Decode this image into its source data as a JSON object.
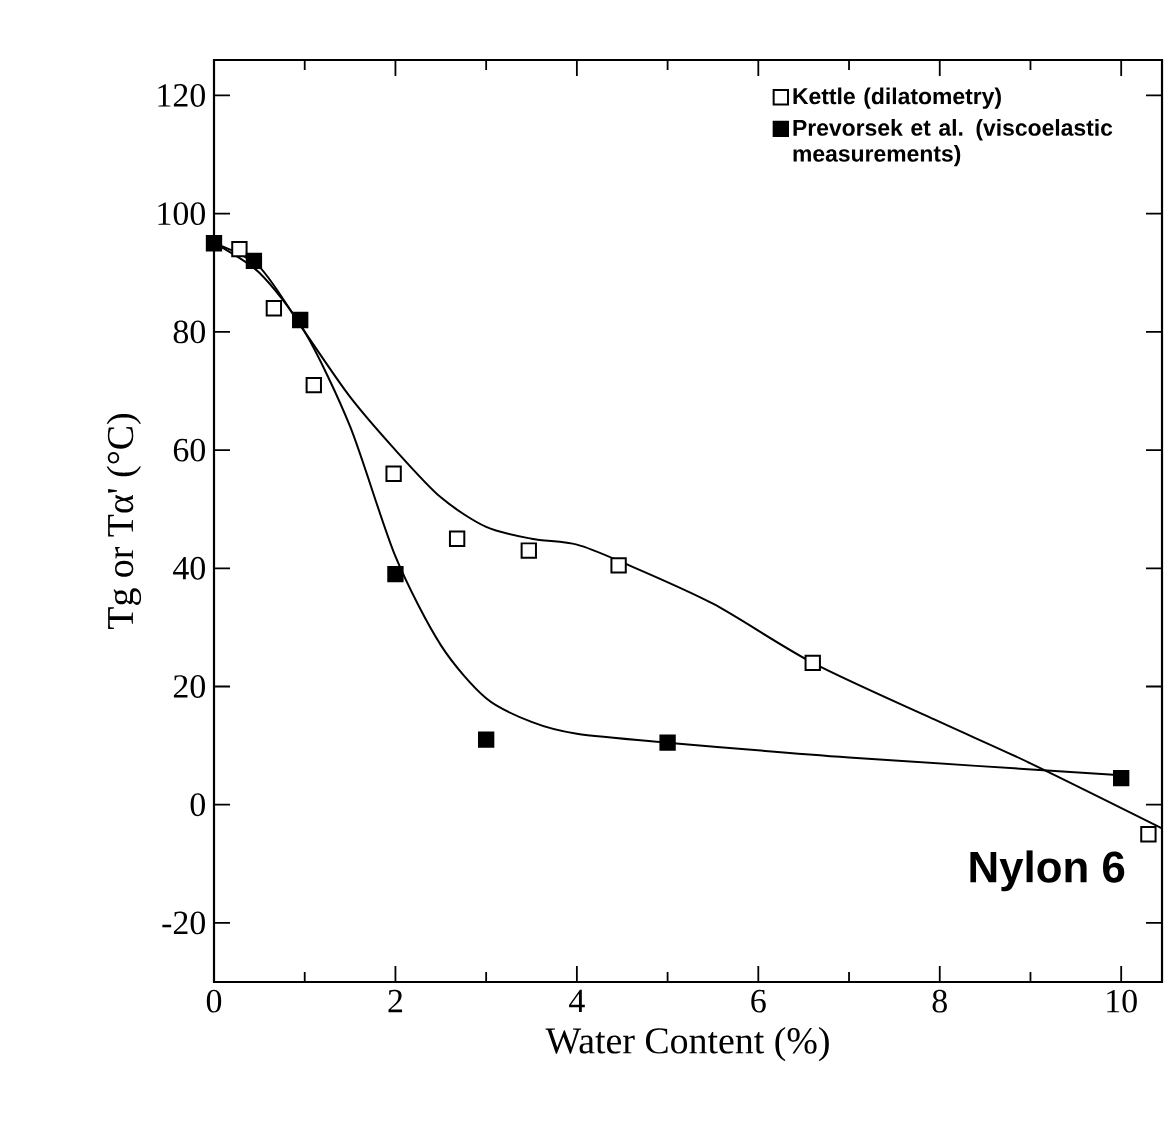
{
  "chart_data": {
    "type": "scatter",
    "xlabel": "Water Content (%)",
    "ylabel": "Tg or Tα' (°C)",
    "xlim": [
      0,
      10.45
    ],
    "ylim": [
      -30,
      126
    ],
    "xticks": [
      0,
      2,
      4,
      6,
      8,
      10
    ],
    "yticks": [
      -20,
      0,
      20,
      40,
      60,
      80,
      100,
      120
    ],
    "legend": "top right",
    "annotations": [
      "Nylon 6"
    ],
    "series": [
      {
        "type": "line",
        "color": "#000000",
        "marker": "none",
        "line_style": "solid",
        "x": [
          0,
          0.5,
          1,
          1.5,
          2,
          2.5,
          3,
          3.5,
          4,
          4.5,
          5.5,
          6.6,
          8,
          9,
          10.45
        ],
        "values": [
          95,
          91,
          80,
          69,
          60,
          52,
          47,
          45,
          44,
          41,
          34,
          24,
          14,
          7,
          -4
        ]
      },
      {
        "type": "line",
        "color": "#000000",
        "marker": "none",
        "line_style": "solid",
        "x": [
          0,
          0.5,
          1,
          1.5,
          2,
          2.5,
          3,
          3.5,
          4,
          5,
          7,
          10
        ],
        "values": [
          95,
          90,
          80,
          64,
          42,
          27,
          18,
          14,
          12,
          10.5,
          8,
          5
        ]
      },
      {
        "name": "Kettle (dilatometry)",
        "color": "#ffffff",
        "marker": "square",
        "x": [
          0.28,
          0.66,
          1.1,
          1.98,
          2.68,
          3.47,
          4.46,
          6.6,
          10.3
        ],
        "values": [
          94,
          84,
          71,
          56,
          45,
          43,
          40.5,
          24,
          -5
        ]
      },
      {
        "name": "Prevorsek et al. (viscoelastic measurements)",
        "color": "#000000",
        "marker": "square",
        "x": [
          0,
          0.44,
          0.95,
          2.0,
          3.0,
          5.0,
          10.0
        ],
        "values": [
          95,
          92,
          82,
          39,
          11,
          10.5,
          4.5
        ]
      }
    ]
  }
}
